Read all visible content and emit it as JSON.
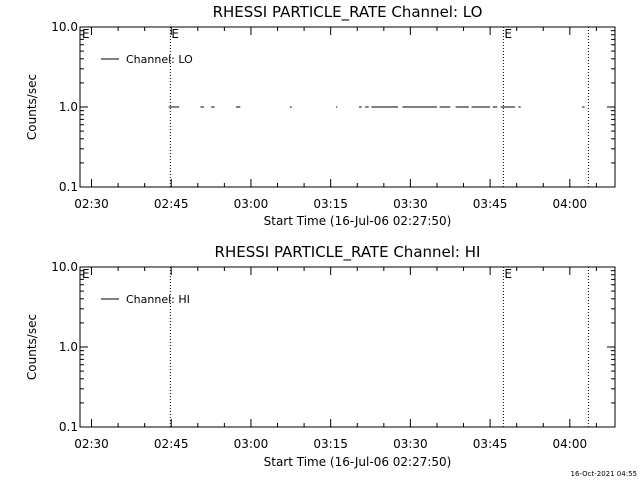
{
  "stamp": "16-Oct-2021 04:55",
  "chart_data": [
    {
      "type": "line",
      "title": "RHESSI PARTICLE_RATE Channel: LO",
      "xlabel": "Start Time (16-Jul-06 02:27:50)",
      "ylabel": "Counts/sec",
      "yscale": "log",
      "ylim": [
        0.1,
        10.0
      ],
      "y_ticks": [
        "0.1",
        "1.0",
        "10.0"
      ],
      "xlim": [
        "02:27:50",
        "04:08:30"
      ],
      "x_ticks": [
        "02:30",
        "02:45",
        "03:00",
        "03:15",
        "03:30",
        "03:45",
        "04:00"
      ],
      "legend": {
        "position": "top-left",
        "entries": [
          "Channel: LO"
        ]
      },
      "event_markers": [
        {
          "time": "02:44:50",
          "label": "E"
        },
        {
          "time": "03:47:30",
          "label": "E"
        },
        {
          "time": "04:03:30",
          "label": ""
        }
      ],
      "corner_label": "E",
      "series": [
        {
          "name": "Channel: LO",
          "value": 1.0,
          "segments": [
            [
              "02:44:30",
              "02:46:30"
            ],
            [
              "02:50:30",
              "02:51:10"
            ],
            [
              "02:52:30",
              "02:53:10"
            ],
            [
              "02:57:10",
              "02:58:00"
            ],
            [
              "03:07:20",
              "03:07:40"
            ],
            [
              "03:16:00",
              "03:16:15"
            ],
            [
              "03:20:20",
              "03:20:50"
            ],
            [
              "03:21:30",
              "03:22:10"
            ],
            [
              "03:22:40",
              "03:27:40"
            ],
            [
              "03:28:30",
              "03:35:00"
            ],
            [
              "03:35:30",
              "03:37:30"
            ],
            [
              "03:38:30",
              "03:41:00"
            ],
            [
              "03:41:30",
              "03:45:00"
            ],
            [
              "03:45:30",
              "03:46:20"
            ],
            [
              "03:47:00",
              "03:49:40"
            ],
            [
              "03:50:20",
              "03:50:45"
            ],
            [
              "04:02:20",
              "04:02:45"
            ]
          ]
        }
      ]
    },
    {
      "type": "line",
      "title": "RHESSI PARTICLE_RATE Channel: HI",
      "xlabel": "Start Time (16-Jul-06 02:27:50)",
      "ylabel": "Counts/sec",
      "yscale": "log",
      "ylim": [
        0.1,
        10.0
      ],
      "y_ticks": [
        "0.1",
        "1.0",
        "10.0"
      ],
      "xlim": [
        "02:27:50",
        "04:08:30"
      ],
      "x_ticks": [
        "02:30",
        "02:45",
        "03:00",
        "03:15",
        "03:30",
        "03:45",
        "04:00"
      ],
      "legend": {
        "position": "top-left",
        "entries": [
          "Channel: HI"
        ]
      },
      "event_markers": [
        {
          "time": "02:44:50",
          "label": ""
        },
        {
          "time": "03:47:30",
          "label": "E"
        },
        {
          "time": "04:03:30",
          "label": ""
        }
      ],
      "corner_label": "E",
      "series": [
        {
          "name": "Channel: HI",
          "value": 1.0,
          "segments": []
        }
      ]
    }
  ]
}
